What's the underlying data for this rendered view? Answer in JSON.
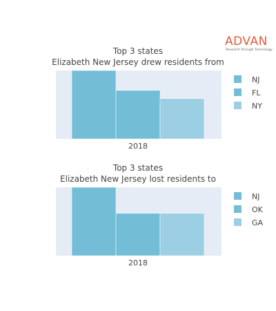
{
  "logo": {
    "brand": "ADVAN",
    "tagline": "Research through Technology",
    "brand_color": "#e35a35"
  },
  "colors": {
    "plot_bg": "#e5ecf6",
    "bars": [
      "#74bdd6",
      "#74bdd6",
      "#9ccfe3"
    ]
  },
  "chart_data": [
    {
      "type": "bar",
      "title": "Top 3 states",
      "subtitle": "Elizabeth New Jersey drew residents from",
      "categories": [
        "2018"
      ],
      "series": [
        {
          "name": "NJ",
          "values": [
            100
          ]
        },
        {
          "name": "FL",
          "values": [
            71
          ]
        },
        {
          "name": "NY",
          "values": [
            59
          ]
        }
      ],
      "ylim": [
        0,
        100
      ],
      "xlabel": "",
      "ylabel": "",
      "legend": "right"
    },
    {
      "type": "bar",
      "title": "Top 3 states",
      "subtitle": "Elizabeth New Jersey lost residents to",
      "categories": [
        "2018"
      ],
      "series": [
        {
          "name": "NJ",
          "values": [
            100
          ]
        },
        {
          "name": "OK",
          "values": [
            62
          ]
        },
        {
          "name": "GA",
          "values": [
            62
          ]
        }
      ],
      "ylim": [
        0,
        100
      ],
      "xlabel": "",
      "ylabel": "",
      "legend": "right"
    }
  ]
}
